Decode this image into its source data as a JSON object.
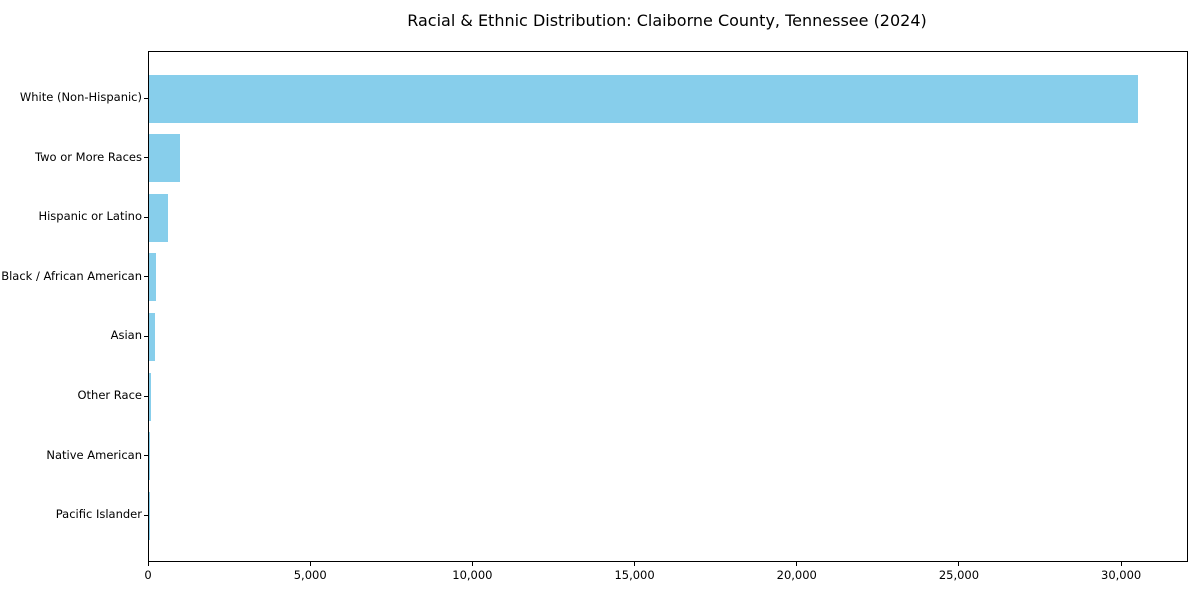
{
  "chart_data": {
    "type": "bar",
    "orientation": "horizontal",
    "title": "Racial & Ethnic Distribution: Claiborne County, Tennessee (2024)",
    "categories": [
      "White (Non-Hispanic)",
      "Two or More Races",
      "Hispanic or Latino",
      "Black / African American",
      "Asian",
      "Other Race",
      "Native American",
      "Pacific Islander"
    ],
    "values": [
      30500,
      950,
      600,
      220,
      170,
      50,
      20,
      5
    ],
    "bar_color": "#87CEEB",
    "axis_color": "#000000",
    "text_color": "#000000",
    "background_color": "#FFFFFF",
    "xlabel": "",
    "ylabel": "",
    "xlim": [
      0,
      32000
    ],
    "x_ticks": [
      0,
      5000,
      10000,
      15000,
      20000,
      25000,
      30000
    ],
    "x_tick_labels": [
      "0",
      "5,000",
      "10,000",
      "15,000",
      "20,000",
      "25,000",
      "30,000"
    ],
    "grid": false,
    "legend": "none"
  }
}
